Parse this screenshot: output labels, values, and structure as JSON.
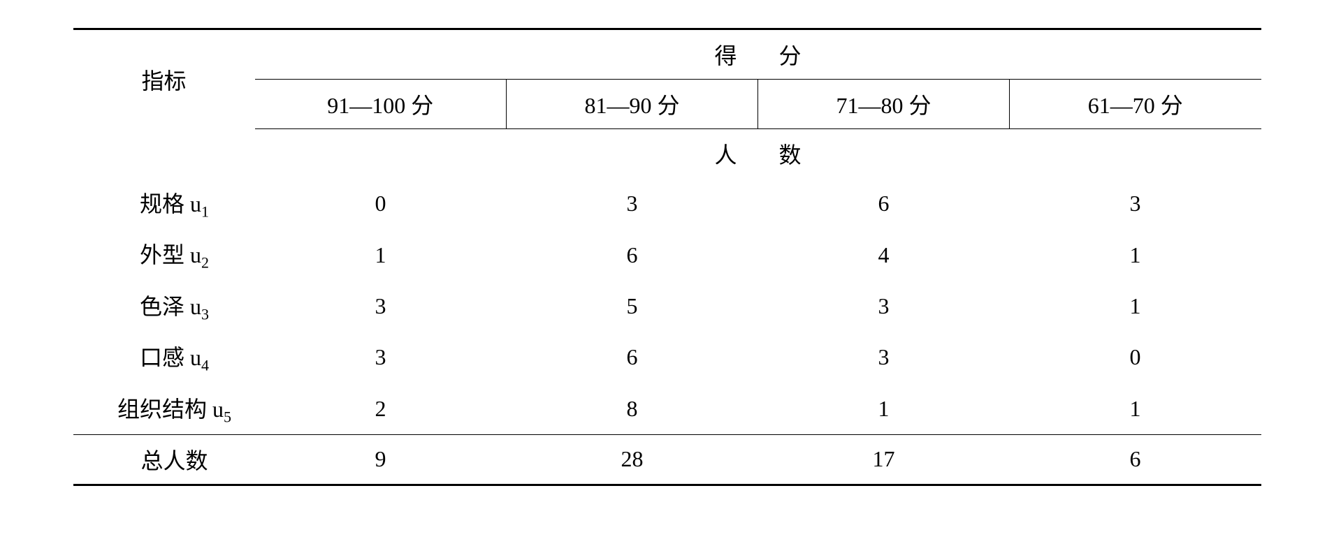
{
  "table": {
    "header": {
      "indicator_label": "指标",
      "score_label": "得",
      "score_label_2": "分",
      "people_label": "人",
      "people_label_2": "数",
      "score_ranges": [
        "91—100 分",
        "81—90 分",
        "71—80 分",
        "61—70 分"
      ]
    },
    "rows": [
      {
        "label": "规格 u",
        "sub": "1",
        "values": [
          "0",
          "3",
          "6",
          "3"
        ]
      },
      {
        "label": "外型 u",
        "sub": "2",
        "values": [
          "1",
          "6",
          "4",
          "1"
        ]
      },
      {
        "label": "色泽 u",
        "sub": "3",
        "values": [
          "3",
          "5",
          "3",
          "1"
        ]
      },
      {
        "label": "口感 u",
        "sub": "4",
        "values": [
          "3",
          "6",
          "3",
          "0"
        ]
      },
      {
        "label": "组织结构 u",
        "sub": "5",
        "values": [
          "2",
          "8",
          "1",
          "1"
        ]
      }
    ],
    "total": {
      "label": "总人数",
      "values": [
        "9",
        "28",
        "17",
        "6"
      ]
    },
    "styling": {
      "font_family": "SimSun",
      "base_fontsize": 32,
      "sub_fontsize": 22,
      "border_color": "#000000",
      "thick_border_width": 3,
      "thin_border_width": 1,
      "background_color": "#ffffff",
      "text_color": "#000000",
      "indicator_col_width": 260,
      "score_col_width": 360
    }
  }
}
